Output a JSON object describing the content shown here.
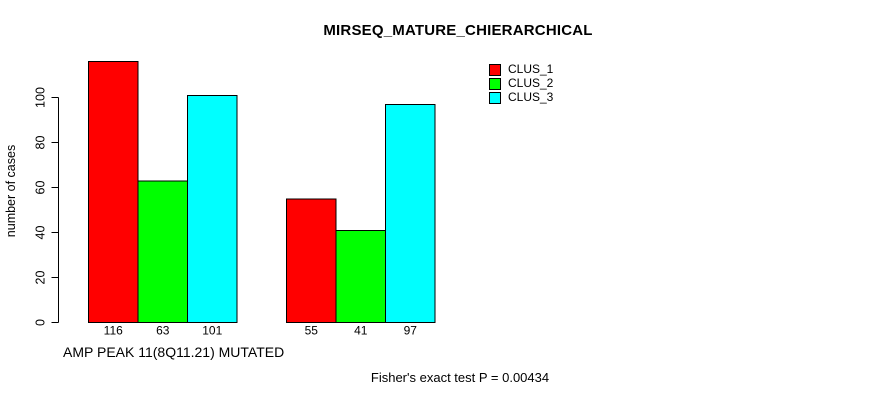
{
  "chart_data": {
    "type": "bar",
    "title": "MIRSEQ_MATURE_CHIERARCHICAL",
    "xlabel": "AMP PEAK 11(8Q11.21) MUTATED",
    "ylabel": "number of cases",
    "annotation": "Fisher's exact test P = 0.00434",
    "yticks": [
      0,
      20,
      40,
      60,
      80,
      100
    ],
    "ylim": [
      0,
      116
    ],
    "grid": false,
    "legend_position": "top-right",
    "bar_value_labels_shown": true,
    "axis_color": "#000000",
    "bar_border_color": "#000000",
    "background_color": "#FFFFFF",
    "series": [
      {
        "name": "CLUS_1",
        "color": "#FF0000",
        "values": [
          116,
          55
        ]
      },
      {
        "name": "CLUS_2",
        "color": "#00FF00",
        "values": [
          63,
          41
        ]
      },
      {
        "name": "CLUS_3",
        "color": "#00FFFF",
        "values": [
          101,
          97
        ]
      }
    ]
  }
}
